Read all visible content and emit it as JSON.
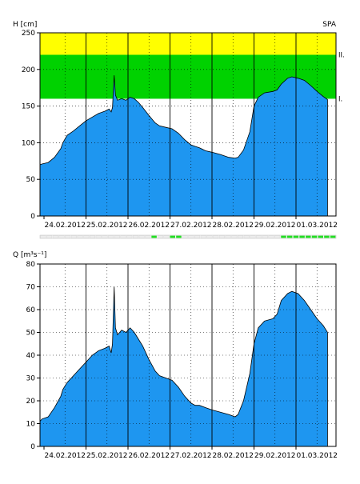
{
  "station_code": "SPA",
  "date_labels": [
    "24.02.2012",
    "25.02.2012",
    "26.02.2012",
    "27.02.2012",
    "28.02.2012",
    "29.02.2012",
    "01.03.2012"
  ],
  "colors": {
    "fill": "#1e96f0",
    "band_green": "#00d200",
    "band_yellow": "#ffff00",
    "status_green": "#22dd22"
  },
  "chart_data": [
    {
      "type": "area",
      "ylabel": "H [cm]",
      "ylim": [
        0,
        250
      ],
      "yticks": [
        0,
        50,
        100,
        150,
        200,
        250
      ],
      "x_unit": "days from 24.02.2012 00:00",
      "xlim": [
        -0.25,
        7.1
      ],
      "grid": "dotted horizontal at ticks, solid vertical at each day",
      "bands": [
        {
          "from": 160,
          "to": 220,
          "color": "green",
          "label": "I."
        },
        {
          "from": 220,
          "to": 250,
          "color": "yellow",
          "label": "II."
        }
      ],
      "series": [
        {
          "points": [
            [
              -0.25,
              70
            ],
            [
              -0.05,
              71
            ],
            [
              0.1,
              73
            ],
            [
              0.25,
              80
            ],
            [
              0.4,
              92
            ],
            [
              0.45,
              100
            ],
            [
              0.55,
              110
            ],
            [
              0.7,
              116
            ],
            [
              0.85,
              123
            ],
            [
              1.0,
              130
            ],
            [
              1.15,
              135
            ],
            [
              1.3,
              140
            ],
            [
              1.45,
              143
            ],
            [
              1.55,
              146
            ],
            [
              1.6,
              142
            ],
            [
              1.63,
              148
            ],
            [
              1.67,
              192
            ],
            [
              1.7,
              165
            ],
            [
              1.75,
              158
            ],
            [
              1.85,
              160
            ],
            [
              1.95,
              158
            ],
            [
              2.05,
              162
            ],
            [
              2.15,
              160
            ],
            [
              2.25,
              155
            ],
            [
              2.35,
              148
            ],
            [
              2.5,
              137
            ],
            [
              2.65,
              127
            ],
            [
              2.75,
              123
            ],
            [
              2.9,
              121
            ],
            [
              3.05,
              119
            ],
            [
              3.2,
              113
            ],
            [
              3.35,
              104
            ],
            [
              3.5,
              97
            ],
            [
              3.6,
              95
            ],
            [
              3.7,
              93
            ],
            [
              3.85,
              89
            ],
            [
              4.0,
              87
            ],
            [
              4.2,
              84
            ],
            [
              4.4,
              80
            ],
            [
              4.55,
              79
            ],
            [
              4.62,
              80
            ],
            [
              4.75,
              90
            ],
            [
              4.9,
              115
            ],
            [
              5.0,
              150
            ],
            [
              5.1,
              162
            ],
            [
              5.25,
              168
            ],
            [
              5.45,
              170
            ],
            [
              5.55,
              172
            ],
            [
              5.65,
              180
            ],
            [
              5.8,
              188
            ],
            [
              5.9,
              190
            ],
            [
              6.05,
              188
            ],
            [
              6.2,
              185
            ],
            [
              6.35,
              178
            ],
            [
              6.5,
              170
            ],
            [
              6.65,
              163
            ],
            [
              6.75,
              159
            ]
          ]
        }
      ]
    },
    {
      "type": "area",
      "ylabel": "Q [m³s⁻¹]",
      "ylim": [
        0,
        80
      ],
      "yticks": [
        0,
        10,
        20,
        30,
        40,
        50,
        60,
        70,
        80
      ],
      "x_unit": "days from 24.02.2012 00:00",
      "xlim": [
        -0.25,
        7.1
      ],
      "grid": "dotted horizontal at ticks, solid vertical at each day",
      "series": [
        {
          "points": [
            [
              -0.25,
              11
            ],
            [
              -0.05,
              12
            ],
            [
              0.1,
              13
            ],
            [
              0.25,
              17
            ],
            [
              0.4,
              22
            ],
            [
              0.45,
              25
            ],
            [
              0.55,
              28
            ],
            [
              0.7,
              31
            ],
            [
              0.85,
              34
            ],
            [
              1.0,
              37
            ],
            [
              1.15,
              40
            ],
            [
              1.3,
              42
            ],
            [
              1.45,
              43
            ],
            [
              1.55,
              44
            ],
            [
              1.6,
              41
            ],
            [
              1.63,
              45
            ],
            [
              1.67,
              70
            ],
            [
              1.7,
              52
            ],
            [
              1.75,
              49
            ],
            [
              1.85,
              51
            ],
            [
              1.95,
              50
            ],
            [
              2.05,
              52
            ],
            [
              2.15,
              50
            ],
            [
              2.25,
              47
            ],
            [
              2.35,
              44
            ],
            [
              2.5,
              38
            ],
            [
              2.65,
              33
            ],
            [
              2.75,
              31
            ],
            [
              2.9,
              30
            ],
            [
              3.05,
              29
            ],
            [
              3.2,
              26
            ],
            [
              3.35,
              22
            ],
            [
              3.5,
              19
            ],
            [
              3.6,
              18
            ],
            [
              3.7,
              18
            ],
            [
              3.85,
              17
            ],
            [
              4.0,
              16
            ],
            [
              4.2,
              15
            ],
            [
              4.4,
              14
            ],
            [
              4.55,
              13
            ],
            [
              4.62,
              14
            ],
            [
              4.75,
              20
            ],
            [
              4.9,
              32
            ],
            [
              5.0,
              45
            ],
            [
              5.1,
              52
            ],
            [
              5.25,
              55
            ],
            [
              5.45,
              56
            ],
            [
              5.55,
              58
            ],
            [
              5.65,
              64
            ],
            [
              5.8,
              67
            ],
            [
              5.9,
              68
            ],
            [
              6.05,
              67
            ],
            [
              6.2,
              64
            ],
            [
              6.35,
              60
            ],
            [
              6.5,
              56
            ],
            [
              6.65,
              53
            ],
            [
              6.75,
              50
            ]
          ]
        }
      ]
    }
  ],
  "status_strip": {
    "segments": 48,
    "green_segments": [
      18,
      21,
      22,
      39,
      40,
      41,
      42,
      43,
      44,
      45,
      46,
      47
    ]
  }
}
